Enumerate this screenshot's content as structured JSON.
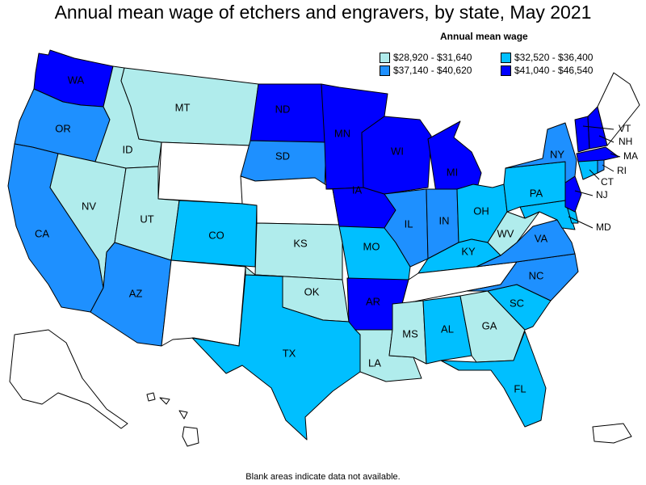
{
  "title": "Annual mean wage of etchers and engravers, by state, May 2021",
  "footnote": "Blank areas indicate data not available.",
  "legend": {
    "title": "Annual mean wage",
    "bins": [
      {
        "label": "$28,920 - $31,640",
        "color": "#b0ecec"
      },
      {
        "label": "$32,520 - $36,400",
        "color": "#00bfff"
      },
      {
        "label": "$37,140 - $40,620",
        "color": "#1e90ff"
      },
      {
        "label": "$41,040 - $46,540",
        "color": "#0000ff"
      }
    ]
  },
  "no_data_color": "#ffffff",
  "states": {
    "WA": 3,
    "OR": 2,
    "CA": 2,
    "NV": 0,
    "ID": 0,
    "MT": 0,
    "WY": null,
    "UT": 0,
    "AZ": 2,
    "CO": 1,
    "NM": null,
    "ND": 3,
    "SD": 2,
    "NE": null,
    "KS": 0,
    "OK": 0,
    "TX": 1,
    "MN": 3,
    "IA": 3,
    "MO": 1,
    "AR": 3,
    "LA": 0,
    "WI": 3,
    "IL": 2,
    "MI": 3,
    "IN": 2,
    "OH": 1,
    "KY": 1,
    "TN": null,
    "MS": 0,
    "AL": 1,
    "GA": 0,
    "FL": 1,
    "SC": 1,
    "NC": 2,
    "VA": 2,
    "WV": 0,
    "MD": 1,
    "DE": 1,
    "PA": 1,
    "NJ": 3,
    "NY": 2,
    "CT": 1,
    "RI": 2,
    "MA": 3,
    "VT": 3,
    "NH": 3,
    "ME": null,
    "AK": null,
    "HI": null,
    "PR": null
  },
  "labels": {
    "WA": "WA",
    "OR": "OR",
    "CA": "CA",
    "NV": "NV",
    "ID": "ID",
    "MT": "MT",
    "UT": "UT",
    "AZ": "AZ",
    "CO": "CO",
    "ND": "ND",
    "SD": "SD",
    "KS": "KS",
    "OK": "OK",
    "TX": "TX",
    "MN": "MN",
    "IA": "IA",
    "MO": "MO",
    "AR": "AR",
    "LA": "LA",
    "WI": "WI",
    "IL": "IL",
    "MI": "MI",
    "IN": "IN",
    "OH": "OH",
    "KY": "KY",
    "MS": "MS",
    "AL": "AL",
    "GA": "GA",
    "FL": "FL",
    "SC": "SC",
    "NC": "NC",
    "VA": "VA",
    "WV": "WV",
    "MD": "MD",
    "PA": "PA",
    "NJ": "NJ",
    "NY": "NY",
    "CT": "CT",
    "RI": "RI",
    "MA": "MA",
    "VT": "VT",
    "NH": "NH"
  }
}
